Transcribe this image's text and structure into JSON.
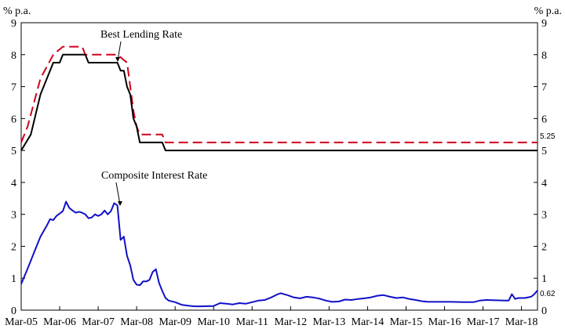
{
  "chart_data": {
    "type": "line",
    "title": "",
    "y_unit_left": "% p.a.",
    "y_unit_right": "% p.a.",
    "ylim": [
      0,
      9
    ],
    "y_ticks": [
      0,
      1,
      2,
      3,
      4,
      5,
      6,
      7,
      8,
      9
    ],
    "xlim": [
      0,
      161
    ],
    "x_tick_labels": [
      "Mar-05",
      "Mar-06",
      "Mar-07",
      "Mar-08",
      "Mar-09",
      "Mar-10",
      "Mar-11",
      "Mar-12",
      "Mar-13",
      "Mar-14",
      "Mar-15",
      "Mar-16",
      "Mar-17",
      "Mar-18"
    ],
    "grid": false,
    "legend": "none",
    "annotations": [
      {
        "text": "Best Lending Rate",
        "x": 30,
        "y": 8.0
      },
      {
        "text": "Composite Interest Rate",
        "x": 31,
        "y": 3.3
      }
    ],
    "end_labels": [
      {
        "text": "5.25",
        "value": 5.25
      },
      {
        "text": "0.62",
        "value": 0.62
      }
    ],
    "series": [
      {
        "key": "blr_upper",
        "color": "#d0021b",
        "dash": "dashed",
        "points": [
          [
            0,
            5.25
          ],
          [
            2,
            5.75
          ],
          [
            6,
            7.25
          ],
          [
            10,
            8.0
          ],
          [
            13,
            8.25
          ],
          [
            19,
            8.25
          ],
          [
            20,
            8.0
          ],
          [
            30,
            8.0
          ],
          [
            33,
            7.75
          ],
          [
            34,
            7.0
          ],
          [
            35,
            6.25
          ],
          [
            36,
            5.75
          ],
          [
            37,
            5.5
          ],
          [
            44,
            5.5
          ],
          [
            45,
            5.25
          ],
          [
            161,
            5.25
          ]
        ]
      },
      {
        "key": "blr_lower",
        "color": "#000000",
        "dash": "solid",
        "points": [
          [
            0,
            5.0
          ],
          [
            3,
            5.5
          ],
          [
            6,
            6.75
          ],
          [
            9,
            7.5
          ],
          [
            10,
            7.75
          ],
          [
            12,
            7.75
          ],
          [
            13,
            8.0
          ],
          [
            20,
            8.0
          ],
          [
            21,
            7.75
          ],
          [
            30,
            7.75
          ],
          [
            31,
            7.5
          ],
          [
            32,
            7.5
          ],
          [
            33,
            7.0
          ],
          [
            34,
            6.75
          ],
          [
            35,
            6.0
          ],
          [
            36,
            5.75
          ],
          [
            37,
            5.25
          ],
          [
            44,
            5.25
          ],
          [
            45,
            5.0
          ],
          [
            161,
            5.0
          ]
        ]
      },
      {
        "key": "composite",
        "color": "#1010c8",
        "dash": "solid",
        "points": [
          [
            0,
            0.82
          ],
          [
            2,
            1.3
          ],
          [
            4,
            1.8
          ],
          [
            6,
            2.3
          ],
          [
            8,
            2.65
          ],
          [
            9,
            2.85
          ],
          [
            10,
            2.82
          ],
          [
            11,
            2.95
          ],
          [
            13,
            3.1
          ],
          [
            14,
            3.4
          ],
          [
            15,
            3.2
          ],
          [
            16,
            3.12
          ],
          [
            17,
            3.05
          ],
          [
            18,
            3.08
          ],
          [
            19,
            3.05
          ],
          [
            20,
            3.0
          ],
          [
            21,
            2.88
          ],
          [
            22,
            2.9
          ],
          [
            23,
            3.0
          ],
          [
            24,
            2.95
          ],
          [
            25,
            3.0
          ],
          [
            26,
            3.12
          ],
          [
            27,
            3.0
          ],
          [
            28,
            3.1
          ],
          [
            29,
            3.35
          ],
          [
            30,
            3.28
          ],
          [
            31,
            2.2
          ],
          [
            32,
            2.3
          ],
          [
            33,
            1.7
          ],
          [
            34,
            1.4
          ],
          [
            35,
            0.95
          ],
          [
            36,
            0.8
          ],
          [
            37,
            0.78
          ],
          [
            38,
            0.9
          ],
          [
            39,
            0.9
          ],
          [
            40,
            0.95
          ],
          [
            41,
            1.2
          ],
          [
            42,
            1.28
          ],
          [
            43,
            0.85
          ],
          [
            44,
            0.6
          ],
          [
            45,
            0.38
          ],
          [
            46,
            0.3
          ],
          [
            48,
            0.25
          ],
          [
            50,
            0.17
          ],
          [
            52,
            0.14
          ],
          [
            54,
            0.12
          ],
          [
            56,
            0.12
          ],
          [
            60,
            0.13
          ],
          [
            62,
            0.22
          ],
          [
            64,
            0.2
          ],
          [
            66,
            0.18
          ],
          [
            68,
            0.22
          ],
          [
            70,
            0.2
          ],
          [
            72,
            0.25
          ],
          [
            74,
            0.3
          ],
          [
            76,
            0.32
          ],
          [
            78,
            0.4
          ],
          [
            80,
            0.5
          ],
          [
            81,
            0.53
          ],
          [
            83,
            0.47
          ],
          [
            85,
            0.4
          ],
          [
            87,
            0.37
          ],
          [
            89,
            0.42
          ],
          [
            91,
            0.4
          ],
          [
            93,
            0.36
          ],
          [
            95,
            0.3
          ],
          [
            97,
            0.26
          ],
          [
            99,
            0.27
          ],
          [
            101,
            0.33
          ],
          [
            103,
            0.32
          ],
          [
            105,
            0.35
          ],
          [
            107,
            0.37
          ],
          [
            109,
            0.4
          ],
          [
            111,
            0.45
          ],
          [
            113,
            0.47
          ],
          [
            115,
            0.42
          ],
          [
            117,
            0.38
          ],
          [
            119,
            0.4
          ],
          [
            121,
            0.35
          ],
          [
            123,
            0.32
          ],
          [
            125,
            0.28
          ],
          [
            127,
            0.26
          ],
          [
            130,
            0.26
          ],
          [
            134,
            0.26
          ],
          [
            138,
            0.25
          ],
          [
            141,
            0.25
          ],
          [
            143,
            0.3
          ],
          [
            145,
            0.32
          ],
          [
            148,
            0.31
          ],
          [
            151,
            0.3
          ],
          [
            152,
            0.3
          ],
          [
            153,
            0.5
          ],
          [
            154,
            0.35
          ],
          [
            155,
            0.38
          ],
          [
            157,
            0.38
          ],
          [
            159,
            0.42
          ],
          [
            160,
            0.5
          ],
          [
            161,
            0.62
          ]
        ]
      }
    ]
  }
}
